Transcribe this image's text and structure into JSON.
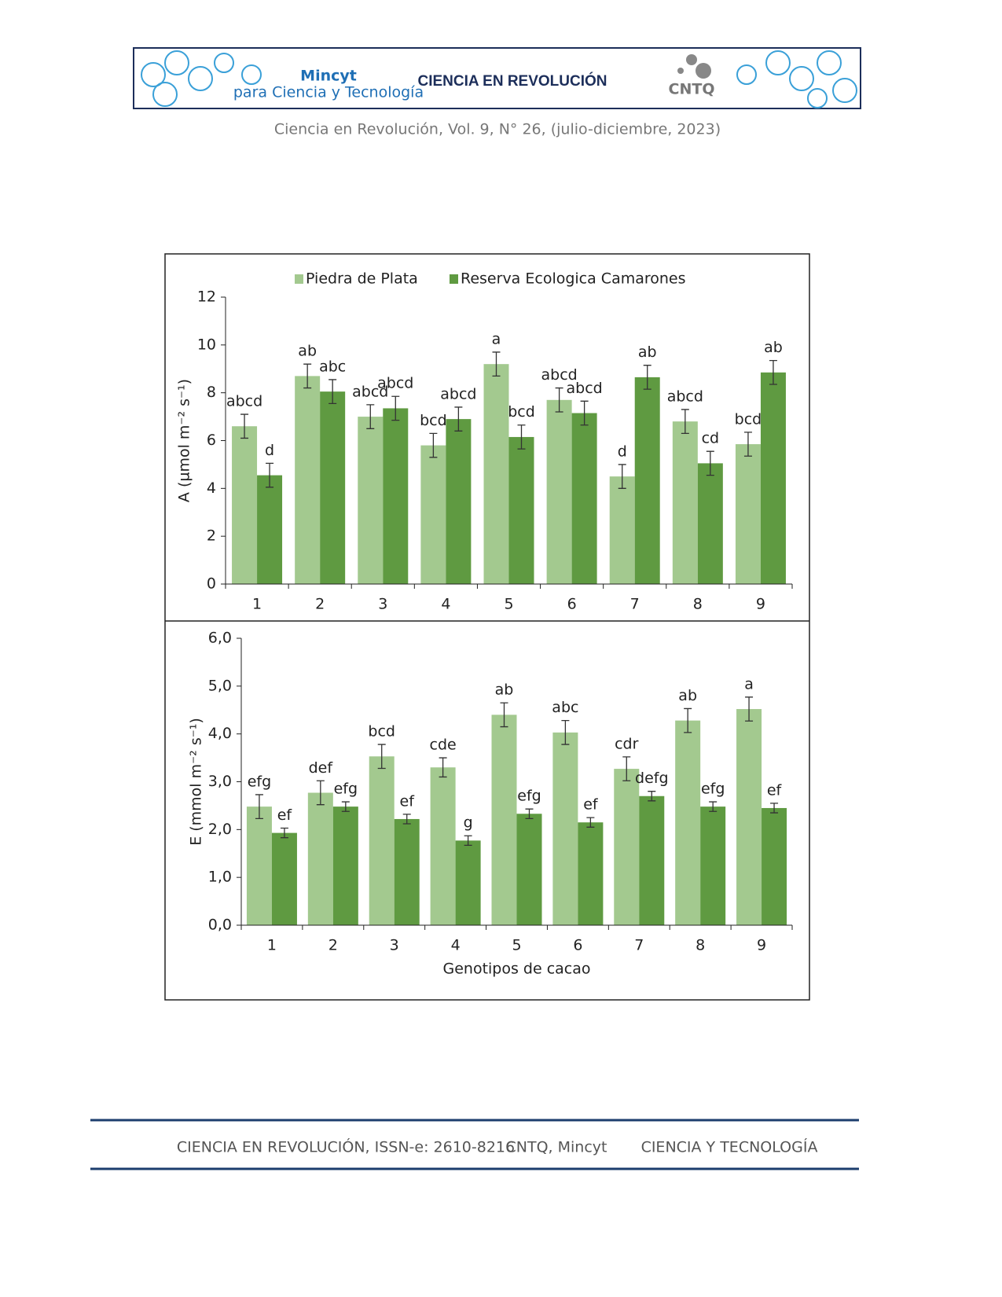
{
  "header": {
    "logo_left": "Mincyt",
    "logo_left_sub": "para Ciencia y Tecnología",
    "title": "CIENCIA EN REVOLUCIÓN",
    "logo_right": "CNTQ"
  },
  "citation": "Ciencia en Revolución, Vol. 9, N° 26, (julio-diciembre, 2023)",
  "footer": [
    "CIENCIA EN REVOLUCIÓN, ISSN-e: 2610-8216",
    "CNTQ, Mincyt",
    "CIENCIA Y TECNOLOGÍA"
  ],
  "chart_data": [
    {
      "type": "bar",
      "ylabel": "A (µmol m⁻² s⁻¹)",
      "legend": "top",
      "categories": [
        "1",
        "2",
        "3",
        "4",
        "5",
        "6",
        "7",
        "8",
        "9"
      ],
      "series": [
        {
          "name": "Piedra de Plata",
          "color": "#a3c98f",
          "values": [
            6.6,
            8.7,
            7.0,
            5.8,
            9.2,
            7.7,
            4.5,
            6.8,
            5.85
          ],
          "errors": [
            0.5,
            0.5,
            0.5,
            0.5,
            0.5,
            0.5,
            0.5,
            0.5,
            0.5
          ],
          "letters": [
            "abcd",
            "ab",
            "abcd",
            "bcd",
            "a",
            "abcd",
            "d",
            "abcd",
            "bcd"
          ]
        },
        {
          "name": "Reserva Ecologica Camarones",
          "color": "#5f9a41",
          "values": [
            4.55,
            8.05,
            7.35,
            6.9,
            6.15,
            7.15,
            8.65,
            5.05,
            8.85
          ],
          "errors": [
            0.5,
            0.5,
            0.5,
            0.5,
            0.5,
            0.5,
            0.5,
            0.5,
            0.5
          ],
          "letters": [
            "d",
            "abc",
            "abcd",
            "abcd",
            "bcd",
            "abcd",
            "ab",
            "cd",
            "ab"
          ]
        }
      ],
      "ylim": [
        0,
        12
      ],
      "yticks": [
        0,
        2,
        4,
        6,
        8,
        10,
        12
      ]
    },
    {
      "type": "bar",
      "ylabel": "E (mmol m⁻² s⁻¹)",
      "xlabel": "Genotipos de cacao",
      "categories": [
        "1",
        "2",
        "3",
        "4",
        "5",
        "6",
        "7",
        "8",
        "9"
      ],
      "series": [
        {
          "color": "#a3c98f",
          "values": [
            2.48,
            2.77,
            3.53,
            3.3,
            4.4,
            4.03,
            3.27,
            4.28,
            4.52
          ],
          "errors": [
            0.25,
            0.25,
            0.25,
            0.2,
            0.25,
            0.25,
            0.25,
            0.25,
            0.25
          ],
          "letters": [
            "efg",
            "def",
            "bcd",
            "cde",
            "ab",
            "abc",
            "cdr",
            "ab",
            "a"
          ]
        },
        {
          "color": "#5f9a41",
          "values": [
            1.93,
            2.48,
            2.22,
            1.77,
            2.33,
            2.15,
            2.7,
            2.48,
            2.45
          ],
          "errors": [
            0.1,
            0.1,
            0.1,
            0.1,
            0.1,
            0.1,
            0.1,
            0.1,
            0.1
          ],
          "letters": [
            "ef",
            "efg",
            "ef",
            "g",
            "efg",
            "ef",
            "defg",
            "efg",
            "ef"
          ]
        }
      ],
      "ylim": [
        0,
        6
      ],
      "yticks": [
        {
          "value": 0,
          "label": "0,0"
        },
        {
          "value": 1,
          "label": "1,0"
        },
        {
          "value": 2,
          "label": "2,0"
        },
        {
          "value": 3,
          "label": "3,0"
        },
        {
          "value": 4,
          "label": "4,0"
        },
        {
          "value": 5,
          "label": "5,0"
        },
        {
          "value": 6,
          "label": "6,0"
        }
      ]
    }
  ]
}
